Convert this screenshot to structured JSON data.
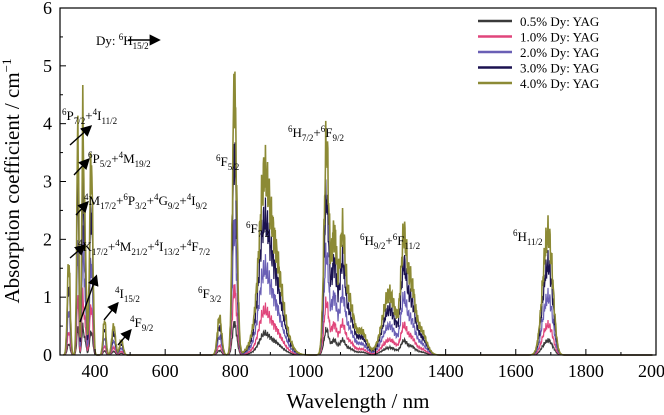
{
  "chart_data": {
    "type": "line",
    "xlabel": "Wavelength / nm",
    "ylabel": "Absorption coefficient / cm",
    "ylabel_superscript": "−1",
    "xlim": [
      300,
      2000
    ],
    "ylim": [
      0,
      6
    ],
    "xticks": [
      "400",
      "600",
      "800",
      "1000",
      "1200",
      "1400",
      "1600",
      "1800",
      "2000"
    ],
    "yticks": [
      "0",
      "1",
      "2",
      "3",
      "4",
      "5",
      "6"
    ],
    "grid": false,
    "legend_position": "top-right",
    "series": [
      {
        "name": "0.5% Dy: YAG",
        "color": "#3a3a3a",
        "scale": 0.12
      },
      {
        "name": "1.0% Dy: YAG",
        "color": "#e0457b",
        "scale": 0.25
      },
      {
        "name": "2.0% Dy: YAG",
        "color": "#6a5fb5",
        "scale": 0.48
      },
      {
        "name": "3.0% Dy: YAG",
        "color": "#1b1250",
        "scale": 0.75
      },
      {
        "name": "4.0% Dy: YAG",
        "color": "#8c8a35",
        "scale": 1.0
      }
    ],
    "peaks_4pct": [
      {
        "x": 325,
        "y": 1.6,
        "w": 4
      },
      {
        "x": 350,
        "y": 2.6,
        "w": 3
      },
      {
        "x": 352,
        "y": 1.8,
        "w": 2
      },
      {
        "x": 365,
        "y": 3.85,
        "w": 3
      },
      {
        "x": 372,
        "y": 1.9,
        "w": 3
      },
      {
        "x": 388,
        "y": 3.05,
        "w": 4
      },
      {
        "x": 393,
        "y": 0.9,
        "w": 3
      },
      {
        "x": 427,
        "y": 0.6,
        "w": 4
      },
      {
        "x": 453,
        "y": 0.5,
        "w": 5
      },
      {
        "x": 475,
        "y": 0.25,
        "w": 5
      },
      {
        "x": 755,
        "y": 0.65,
        "w": 6
      },
      {
        "x": 800,
        "y": 3.05,
        "w": 6
      },
      {
        "x": 795,
        "y": 2.0,
        "w": 5
      },
      {
        "x": 900,
        "y": 2.2,
        "w": 28
      },
      {
        "x": 880,
        "y": 1.3,
        "w": 12
      },
      {
        "x": 1060,
        "y": 3.55,
        "w": 7
      },
      {
        "x": 1082,
        "y": 2.1,
        "w": 8
      },
      {
        "x": 1105,
        "y": 1.9,
        "w": 8
      },
      {
        "x": 1125,
        "y": 0.9,
        "w": 12
      },
      {
        "x": 1160,
        "y": 0.4,
        "w": 15
      },
      {
        "x": 1240,
        "y": 1.05,
        "w": 20
      },
      {
        "x": 1280,
        "y": 1.6,
        "w": 8
      },
      {
        "x": 1300,
        "y": 1.2,
        "w": 12
      },
      {
        "x": 1330,
        "y": 0.4,
        "w": 15
      },
      {
        "x": 1685,
        "y": 1.5,
        "w": 12
      },
      {
        "x": 1700,
        "y": 1.1,
        "w": 10
      }
    ],
    "annotations": [
      {
        "id": "ground",
        "base": "Dy: ",
        "sup": "6",
        "main": "H",
        "sub": "15/2"
      },
      {
        "id": "a1",
        "parts": [
          [
            "sup",
            "6"
          ],
          [
            "t",
            "P"
          ],
          [
            "sub",
            "7/2"
          ],
          [
            "t",
            "+"
          ],
          [
            "sup",
            "4"
          ],
          [
            "t",
            "I"
          ],
          [
            "sub",
            "11/2"
          ]
        ]
      },
      {
        "id": "a2",
        "parts": [
          [
            "sup",
            "6"
          ],
          [
            "t",
            "P"
          ],
          [
            "sub",
            "5/2"
          ],
          [
            "t",
            "+"
          ],
          [
            "sup",
            "4"
          ],
          [
            "t",
            "M"
          ],
          [
            "sub",
            "19/2"
          ]
        ]
      },
      {
        "id": "a3",
        "parts": [
          [
            "sup",
            "4"
          ],
          [
            "t",
            "M"
          ],
          [
            "sub",
            "17/2"
          ],
          [
            "t",
            "+"
          ],
          [
            "sup",
            "6"
          ],
          [
            "t",
            "P"
          ],
          [
            "sub",
            "3/2"
          ],
          [
            "t",
            "+"
          ],
          [
            "sup",
            "4"
          ],
          [
            "t",
            "G"
          ],
          [
            "sub",
            "9/2"
          ],
          [
            "t",
            "+"
          ],
          [
            "sup",
            "4"
          ],
          [
            "t",
            "I"
          ],
          [
            "sub",
            "9/2"
          ]
        ]
      },
      {
        "id": "a4",
        "parts": [
          [
            "sup",
            "4"
          ],
          [
            "t",
            "K"
          ],
          [
            "sub",
            "17/2"
          ],
          [
            "t",
            "+"
          ],
          [
            "sup",
            "4"
          ],
          [
            "t",
            "M"
          ],
          [
            "sub",
            "21/2"
          ],
          [
            "t",
            "+"
          ],
          [
            "sup",
            "4"
          ],
          [
            "t",
            "I"
          ],
          [
            "sub",
            "13/2"
          ],
          [
            "t",
            "+"
          ],
          [
            "sup",
            "4"
          ],
          [
            "t",
            "F"
          ],
          [
            "sub",
            "7/2"
          ]
        ]
      },
      {
        "id": "a5",
        "parts": [
          [
            "sup",
            "4"
          ],
          [
            "t",
            "I"
          ],
          [
            "sub",
            "15/2"
          ]
        ]
      },
      {
        "id": "a6",
        "parts": [
          [
            "sup",
            "4"
          ],
          [
            "t",
            "F"
          ],
          [
            "sub",
            "9/2"
          ]
        ]
      },
      {
        "id": "a7",
        "parts": [
          [
            "sup",
            "6"
          ],
          [
            "t",
            "F"
          ],
          [
            "sub",
            "3/2"
          ]
        ]
      },
      {
        "id": "a8",
        "parts": [
          [
            "sup",
            "6"
          ],
          [
            "t",
            "F"
          ],
          [
            "sub",
            "5/2"
          ]
        ]
      },
      {
        "id": "a9",
        "parts": [
          [
            "sup",
            "6"
          ],
          [
            "t",
            "F"
          ],
          [
            "sub",
            "7/2"
          ]
        ]
      },
      {
        "id": "a10",
        "parts": [
          [
            "sup",
            "6"
          ],
          [
            "t",
            "H"
          ],
          [
            "sub",
            "7/2"
          ],
          [
            "t",
            "+"
          ],
          [
            "sup",
            "6"
          ],
          [
            "t",
            "F"
          ],
          [
            "sub",
            "9/2"
          ]
        ]
      },
      {
        "id": "a11",
        "parts": [
          [
            "sup",
            "6"
          ],
          [
            "t",
            "H"
          ],
          [
            "sub",
            "9/2"
          ],
          [
            "t",
            "+"
          ],
          [
            "sup",
            "6"
          ],
          [
            "t",
            "F"
          ],
          [
            "sub",
            "11/2"
          ]
        ]
      },
      {
        "id": "a12",
        "parts": [
          [
            "sup",
            "6"
          ],
          [
            "t",
            "H"
          ],
          [
            "sub",
            "11/2"
          ]
        ]
      }
    ]
  }
}
